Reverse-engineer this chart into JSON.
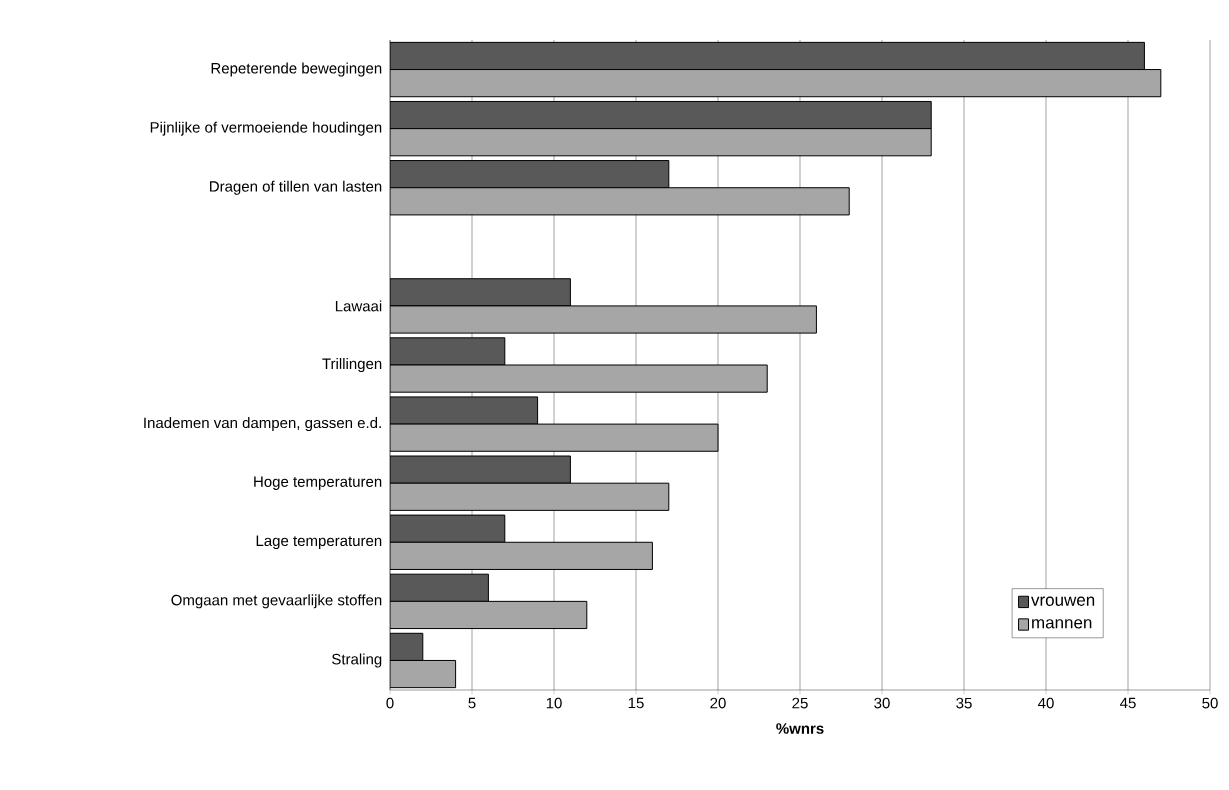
{
  "chart_data": {
    "type": "bar",
    "orientation": "horizontal",
    "categories": [
      "Repeterende bewegingen",
      "Pijnlijke of vermoeiende houdingen",
      "Dragen of tillen van lasten",
      null,
      "Lawaai",
      "Trillingen",
      "Inademen van dampen, gassen e.d.",
      "Hoge temperaturen",
      "Lage temperaturen",
      "Omgaan met gevaarlijke stoffen",
      "Straling"
    ],
    "series": [
      {
        "name": "vrouwen",
        "color": "#595959",
        "values": [
          46,
          33,
          17,
          null,
          11,
          7,
          9,
          11,
          7,
          6,
          2
        ]
      },
      {
        "name": "mannen",
        "color": "#a6a6a6",
        "values": [
          47,
          33,
          28,
          null,
          26,
          23,
          20,
          17,
          16,
          12,
          4
        ]
      }
    ],
    "xlabel": "%wnrs",
    "xlim": [
      0,
      50
    ],
    "xticks": [
      0,
      5,
      10,
      15,
      20,
      25,
      30,
      35,
      40,
      45,
      50
    ],
    "grid": "x",
    "legend": "bottom right"
  }
}
